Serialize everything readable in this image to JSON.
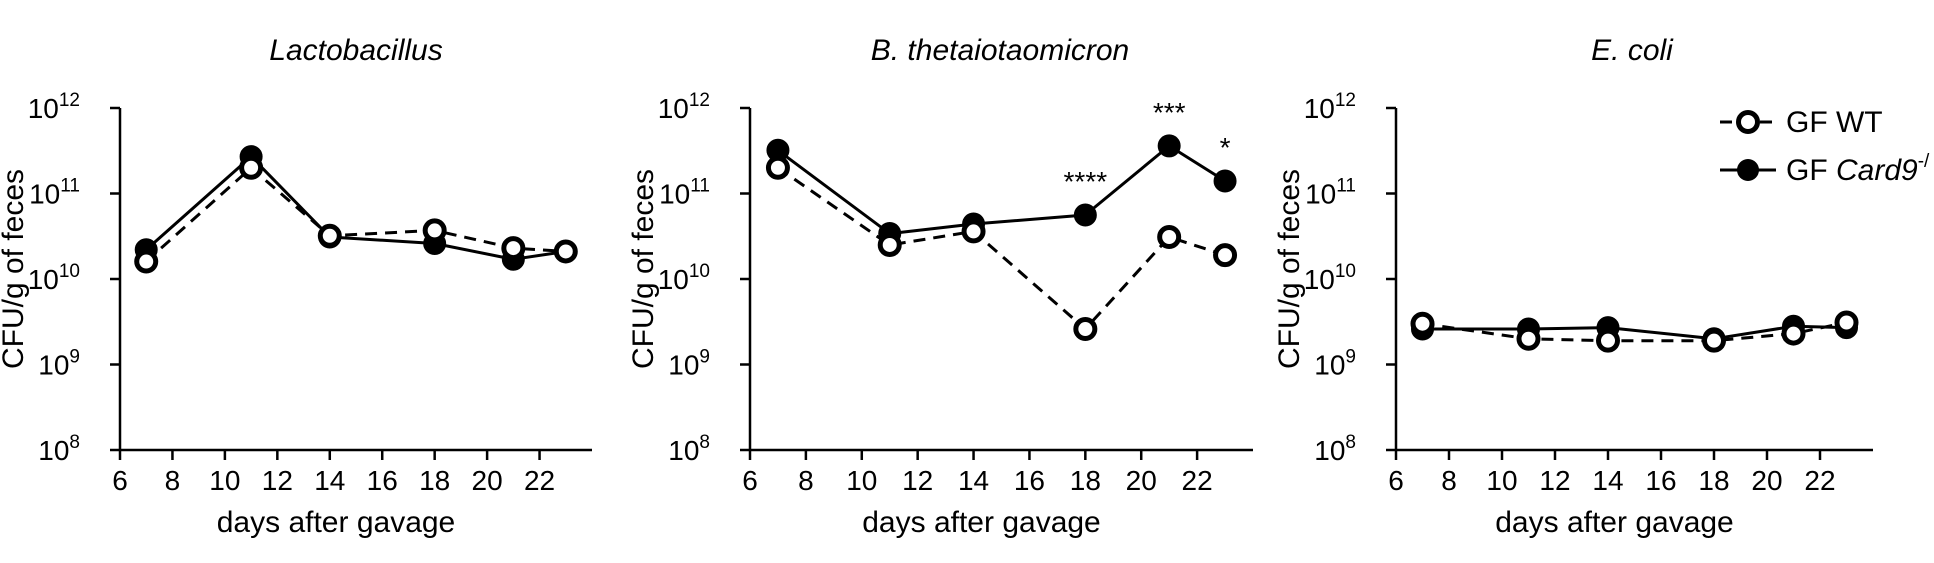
{
  "legend": {
    "position": "top-right",
    "entries": [
      {
        "series": "wt",
        "prefix": "GF WT",
        "italic": "",
        "sup": ""
      },
      {
        "series": "ko",
        "prefix": "GF ",
        "italic": "Card9",
        "sup": "-/"
      }
    ]
  },
  "chart_data": [
    {
      "type": "line",
      "title": "Lactobacillus",
      "xlabel": "days after gavage",
      "ylabel": "CFU/g of feces",
      "xlim": [
        6,
        24
      ],
      "ylim": [
        100000000,
        1000000000000
      ],
      "yscale": "log",
      "xticks": [
        6,
        8,
        10,
        12,
        14,
        16,
        18,
        20,
        22
      ],
      "yticks": [
        {
          "base": "10",
          "exp": "8"
        },
        {
          "base": "10",
          "exp": "9"
        },
        {
          "base": "10",
          "exp": "10"
        },
        {
          "base": "10",
          "exp": "11"
        },
        {
          "base": "10",
          "exp": "12"
        }
      ],
      "series": [
        {
          "key": "wt",
          "name": "GF WT",
          "style": "dashed-open",
          "x": [
            7,
            11,
            14,
            18,
            21,
            23
          ],
          "y": [
            16000000000,
            200000000000,
            32000000000,
            37000000000,
            23000000000,
            21000000000
          ]
        },
        {
          "key": "ko",
          "name": "GF Card9-/",
          "style": "solid-filled",
          "x": [
            7,
            11,
            14,
            18,
            21,
            23
          ],
          "y": [
            22000000000,
            270000000000,
            31000000000,
            26000000000,
            17000000000,
            21000000000
          ]
        }
      ],
      "annotations": []
    },
    {
      "type": "line",
      "title": "B. thetaiotaomicron",
      "xlabel": "days after gavage",
      "ylabel": "CFU/g of feces",
      "xlim": [
        6,
        24
      ],
      "ylim": [
        100000000,
        1000000000000
      ],
      "yscale": "log",
      "xticks": [
        6,
        8,
        10,
        12,
        14,
        16,
        18,
        20,
        22
      ],
      "yticks": [
        {
          "base": "10",
          "exp": "8"
        },
        {
          "base": "10",
          "exp": "9"
        },
        {
          "base": "10",
          "exp": "10"
        },
        {
          "base": "10",
          "exp": "11"
        },
        {
          "base": "10",
          "exp": "12"
        }
      ],
      "series": [
        {
          "key": "wt",
          "name": "GF WT",
          "style": "dashed-open",
          "x": [
            7,
            11,
            14,
            18,
            21,
            23
          ],
          "y": [
            200000000000,
            25000000000,
            36000000000,
            2600000000,
            31000000000,
            19000000000
          ]
        },
        {
          "key": "ko",
          "name": "GF Card9-/",
          "style": "solid-filled",
          "x": [
            7,
            11,
            14,
            18,
            21,
            23
          ],
          "y": [
            320000000000,
            34000000000,
            44000000000,
            56000000000,
            360000000000,
            140000000000
          ]
        }
      ],
      "annotations": [
        {
          "x": 18,
          "text": "****"
        },
        {
          "x": 21,
          "text": "***"
        },
        {
          "x": 23,
          "text": "*"
        }
      ]
    },
    {
      "type": "line",
      "title": "E. coli",
      "xlabel": "days after gavage",
      "ylabel": "CFU/g of feces",
      "xlim": [
        6,
        24
      ],
      "ylim": [
        100000000,
        1000000000000
      ],
      "yscale": "log",
      "xticks": [
        6,
        8,
        10,
        12,
        14,
        16,
        18,
        20,
        22
      ],
      "yticks": [
        {
          "base": "10",
          "exp": "8"
        },
        {
          "base": "10",
          "exp": "9"
        },
        {
          "base": "10",
          "exp": "10"
        },
        {
          "base": "10",
          "exp": "11"
        },
        {
          "base": "10",
          "exp": "12"
        }
      ],
      "series": [
        {
          "key": "wt",
          "name": "GF WT",
          "style": "dashed-open",
          "x": [
            7,
            11,
            14,
            18,
            21,
            23
          ],
          "y": [
            3000000000,
            2000000000,
            1900000000,
            1900000000,
            2300000000,
            3100000000
          ]
        },
        {
          "key": "ko",
          "name": "GF Card9-/",
          "style": "solid-filled",
          "x": [
            7,
            11,
            14,
            18,
            21,
            23
          ],
          "y": [
            2600000000,
            2600000000,
            2700000000,
            2000000000,
            2800000000,
            2700000000
          ]
        }
      ],
      "annotations": []
    }
  ]
}
